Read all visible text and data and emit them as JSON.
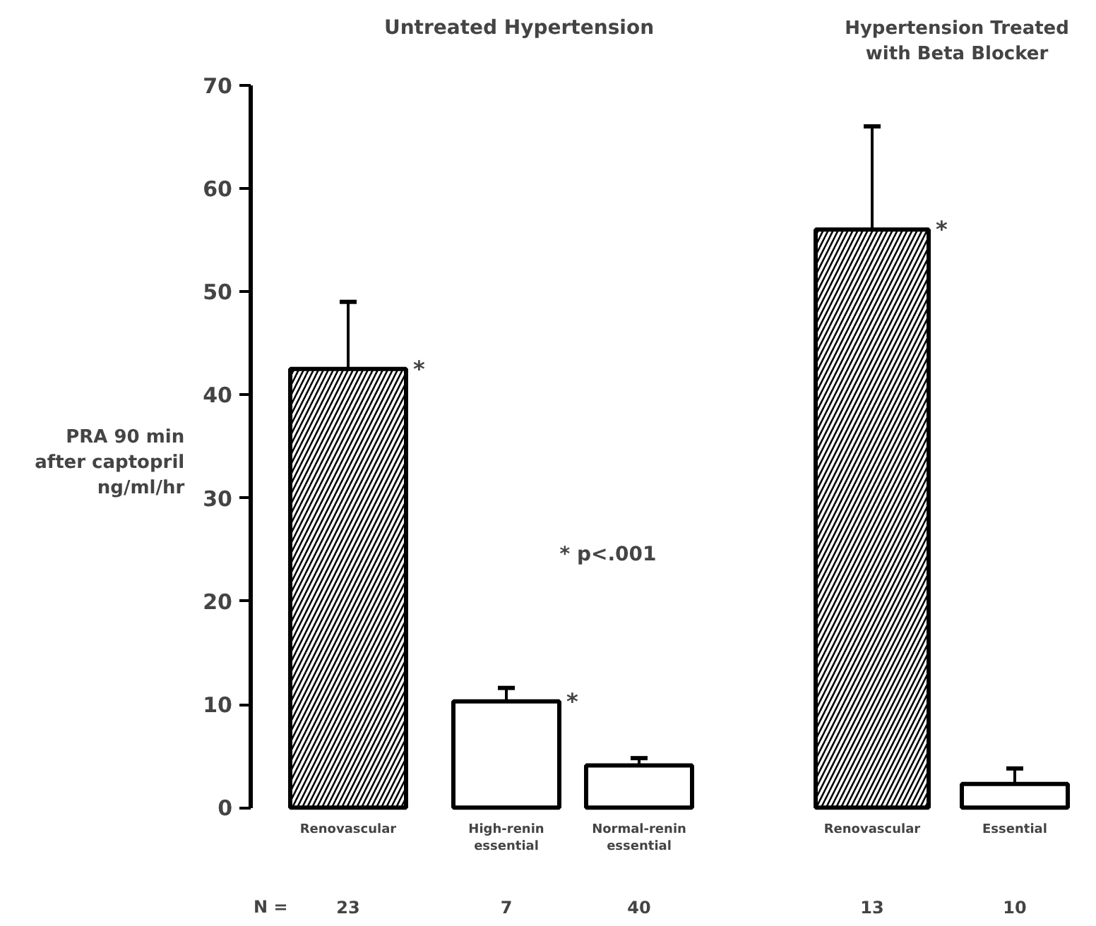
{
  "chart_data": {
    "type": "bar",
    "ylabel": "PRA 90 min\nafter captopril\nng/ml/hr",
    "categories": [
      "Renovascular",
      "High-renin\nessential",
      "Normal-renin\nessential",
      "Renovascular",
      "Essential"
    ],
    "values": [
      42.5,
      10.3,
      4.1,
      56,
      2.3
    ],
    "errors": [
      [
        42.5,
        49
      ],
      [
        10.3,
        11.6
      ],
      [
        4.1,
        4.8
      ],
      [
        56,
        66
      ],
      [
        2.3,
        3.8
      ]
    ],
    "colors": [
      "#000000",
      "#ffffff",
      "#ffffff",
      "#000000",
      "#ffffff"
    ],
    "ylim": [
      0,
      70
    ],
    "yticks": [
      0,
      10,
      20,
      30,
      40,
      50,
      60,
      70
    ],
    "grid": false,
    "annotations": [
      "Untreated Hypertension",
      "Hypertension Treated\nwith Beta Blocker",
      "* p<.001",
      "N =",
      "23",
      "7",
      "40",
      "13",
      "10",
      {
        "text": "*",
        "x": "Renovascular",
        "y": 42.5
      },
      {
        "text": "*",
        "x": "High-renin\nessential",
        "y": 10.3
      },
      "*"
    ]
  }
}
